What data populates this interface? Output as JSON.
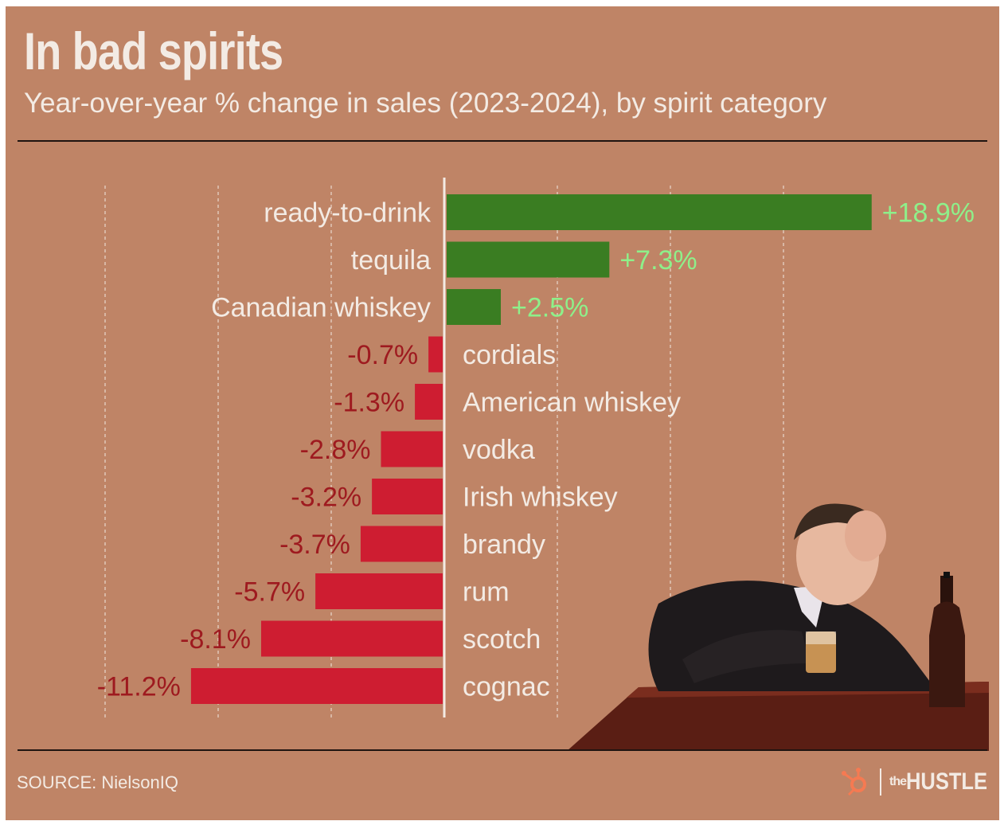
{
  "header": {
    "title": "In bad spirits",
    "subtitle": "Year-over-year % change in sales (2023-2024), by spirit category"
  },
  "footer": {
    "source": "SOURCE: NielsonIQ",
    "brand_prefix": "the",
    "brand_name": "HUSTLE"
  },
  "photo": {
    "description_icon": "man-drinking-whiskey-photo"
  },
  "colors": {
    "background": "#bf8466",
    "positive_bar": "#3a7d22",
    "negative_bar": "#ce1d31",
    "positive_label": "#8ef08a",
    "negative_label": "#9e1a1f",
    "category_label": "#f3ebe4",
    "axis": "#f3ebe4",
    "grid": "#f3ebe4",
    "hubspot": "#f57a52"
  },
  "chart_data": {
    "type": "bar",
    "orientation": "horizontal",
    "title": "In bad spirits",
    "subtitle": "Year-over-year % change in sales (2023-2024), by spirit category",
    "xlabel": "",
    "ylabel": "",
    "grid": true,
    "legend": "none",
    "categories": [
      "ready-to-drink",
      "tequila",
      "Canadian whiskey",
      "cordials",
      "American whiskey",
      "vodka",
      "Irish whiskey",
      "brandy",
      "rum",
      "scotch",
      "cognac"
    ],
    "values": [
      18.9,
      7.3,
      2.5,
      -0.7,
      -1.3,
      -2.8,
      -3.2,
      -3.7,
      -5.7,
      -8.1,
      -11.2
    ],
    "value_labels": [
      "+18.9%",
      "+7.3%",
      "+2.5%",
      "-0.7%",
      "-1.3%",
      "-2.8%",
      "-3.2%",
      "-3.7%",
      "-5.7%",
      "-8.1%",
      "-11.2%"
    ],
    "xlim": [
      -15,
      20
    ]
  }
}
